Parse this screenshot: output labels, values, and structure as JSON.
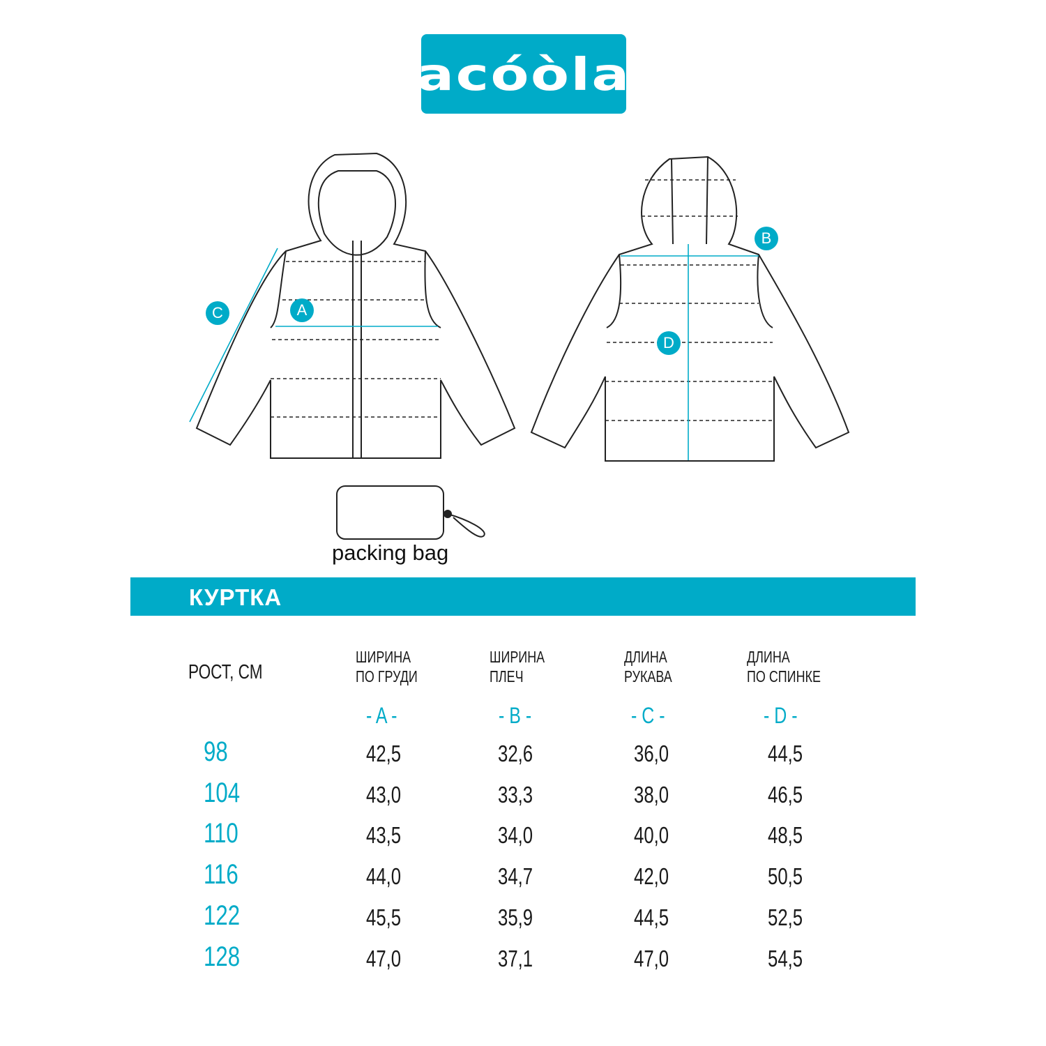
{
  "brand": {
    "logo_text": "acóòla",
    "accent_color": "#00abc8"
  },
  "diagram": {
    "labels": {
      "a": "A",
      "b": "B",
      "c": "C",
      "d": "D"
    },
    "packing_bag_label": "packing bag"
  },
  "section_title": "КУРТКА",
  "table": {
    "row_header": "РОСТ, СМ",
    "columns": [
      {
        "line1": "ШИРИНА",
        "line2": "ПО ГРУДИ",
        "code": "- A -"
      },
      {
        "line1": "ШИРИНА",
        "line2": "ПЛЕЧ",
        "code": "- B -"
      },
      {
        "line1": "ДЛИНА",
        "line2": "РУКАВА",
        "code": "- C -"
      },
      {
        "line1": "ДЛИНА",
        "line2": "ПО СПИНКЕ",
        "code": "- D -"
      }
    ],
    "rows": [
      {
        "size": "98",
        "values": [
          "42,5",
          "32,6",
          "36,0",
          "44,5"
        ]
      },
      {
        "size": "104",
        "values": [
          "43,0",
          "33,3",
          "38,0",
          "46,5"
        ]
      },
      {
        "size": "110",
        "values": [
          "43,5",
          "34,0",
          "40,0",
          "48,5"
        ]
      },
      {
        "size": "116",
        "values": [
          "44,0",
          "34,7",
          "42,0",
          "50,5"
        ]
      },
      {
        "size": "122",
        "values": [
          "45,5",
          "35,9",
          "44,5",
          "52,5"
        ]
      },
      {
        "size": "128",
        "values": [
          "47,0",
          "37,1",
          "47,0",
          "54,5"
        ]
      }
    ]
  }
}
